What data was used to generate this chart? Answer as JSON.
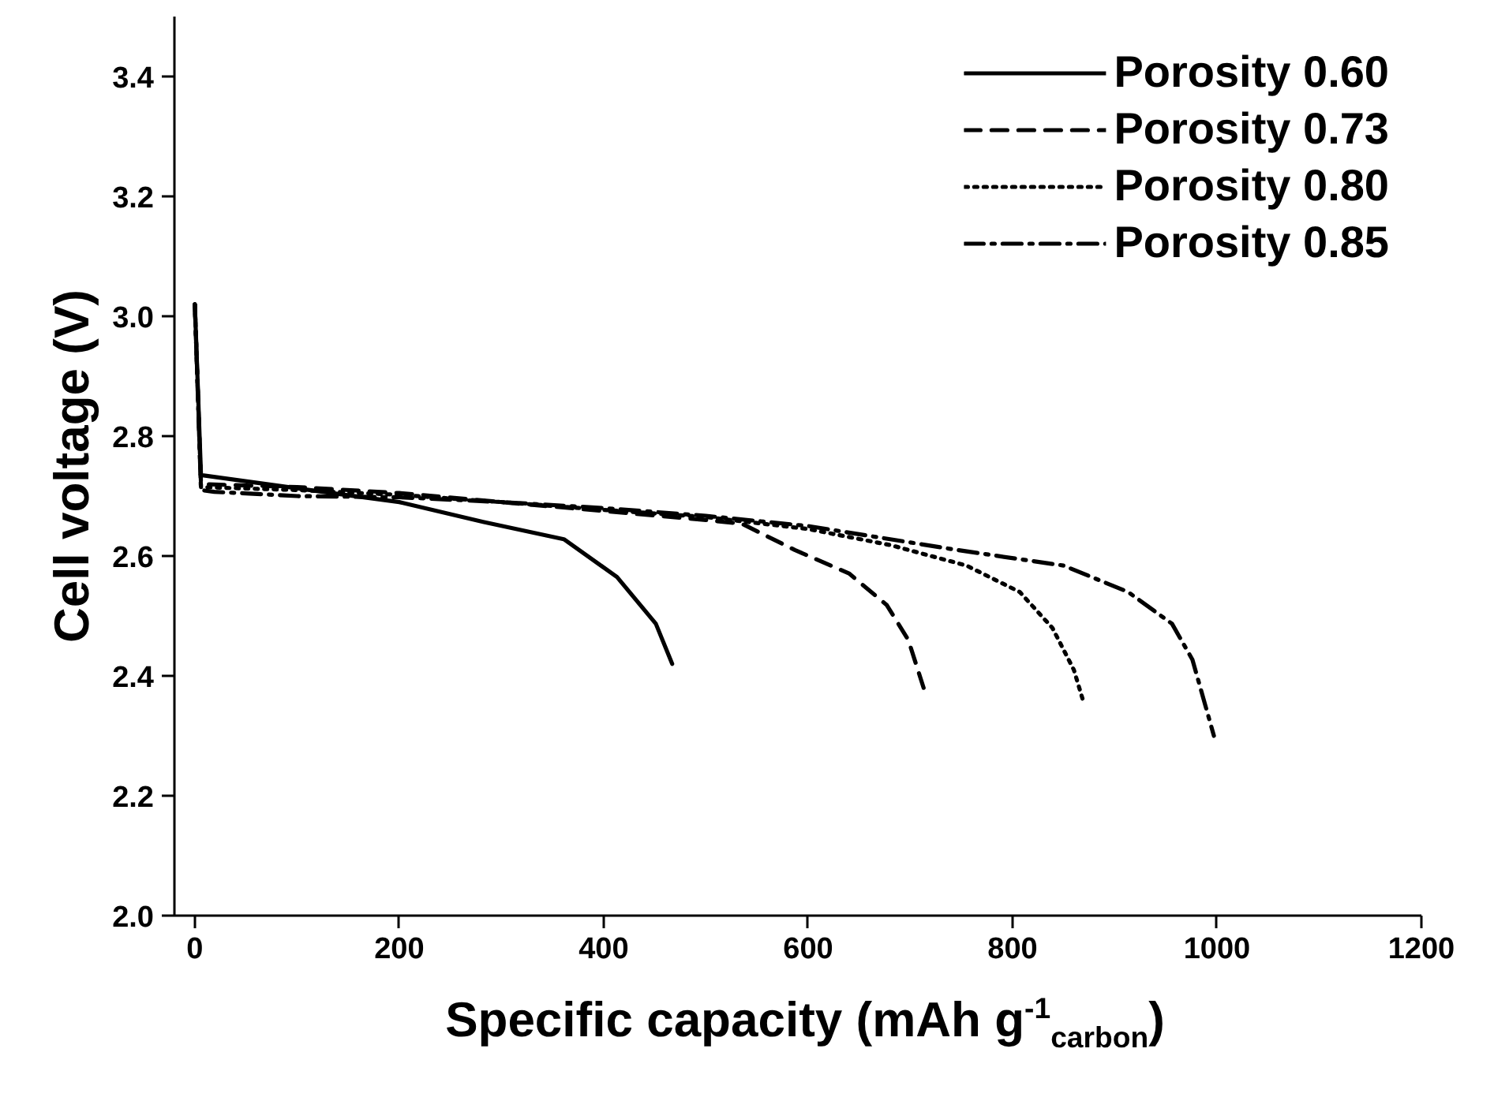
{
  "chart_data": {
    "type": "line",
    "xlabel": "Specific capacity (mAh g$^{-1}$$_{carbon}$)",
    "ylabel": "Cell voltage (V)",
    "xlim": [
      -20,
      1200
    ],
    "ylim": [
      2.0,
      3.5
    ],
    "xticks": [
      0,
      200,
      400,
      600,
      800,
      1000,
      1200
    ],
    "yticks": [
      {
        "value": 2.0,
        "label": "2.0"
      },
      {
        "value": 2.2,
        "label": "2.2"
      },
      {
        "value": 2.4,
        "label": "2.4"
      },
      {
        "value": 2.6,
        "label": "2.6"
      },
      {
        "value": 2.8,
        "label": "2.8"
      },
      {
        "value": 3.0,
        "label": "3.0"
      },
      {
        "value": 3.2,
        "label": "3.2"
      },
      {
        "value": 3.4,
        "label": "3.4"
      }
    ],
    "grid": false,
    "legend": "top right",
    "marker": "none",
    "series": [
      {
        "name": "Porosity 0.60",
        "color": "#000000",
        "line_style": "solid",
        "x": [
          0,
          6,
          125,
          200,
          282,
          361,
          413,
          451,
          467
        ],
        "values": [
          3.02,
          2.735,
          2.707,
          2.69,
          2.657,
          2.628,
          2.565,
          2.487,
          2.42
        ]
      },
      {
        "name": "Porosity 0.73",
        "color": "#000000",
        "line_style": "dashed",
        "x": [
          0,
          6,
          100,
          200,
          300,
          400,
          500,
          535,
          587,
          640,
          677,
          698,
          713
        ],
        "values": [
          3.02,
          2.72,
          2.715,
          2.705,
          2.69,
          2.675,
          2.66,
          2.654,
          2.61,
          2.571,
          2.518,
          2.46,
          2.38
        ]
      },
      {
        "name": "Porosity 0.80",
        "color": "#000000",
        "line_style": "dotted",
        "x": [
          0,
          6,
          100,
          200,
          300,
          400,
          500,
          600,
          681,
          755,
          807,
          839,
          860,
          870
        ],
        "values": [
          3.02,
          2.715,
          2.71,
          2.702,
          2.69,
          2.677,
          2.665,
          2.645,
          2.618,
          2.584,
          2.54,
          2.48,
          2.41,
          2.353
        ]
      },
      {
        "name": "Porosity 0.85",
        "color": "#000000",
        "line_style": "dashdot",
        "x": [
          0,
          6,
          19,
          100,
          200,
          300,
          400,
          500,
          600,
          746,
          850,
          913,
          956,
          976,
          997
        ],
        "values": [
          3.02,
          2.71,
          2.707,
          2.7,
          2.698,
          2.69,
          2.68,
          2.667,
          2.65,
          2.61,
          2.584,
          2.54,
          2.487,
          2.427,
          2.3
        ]
      }
    ]
  }
}
